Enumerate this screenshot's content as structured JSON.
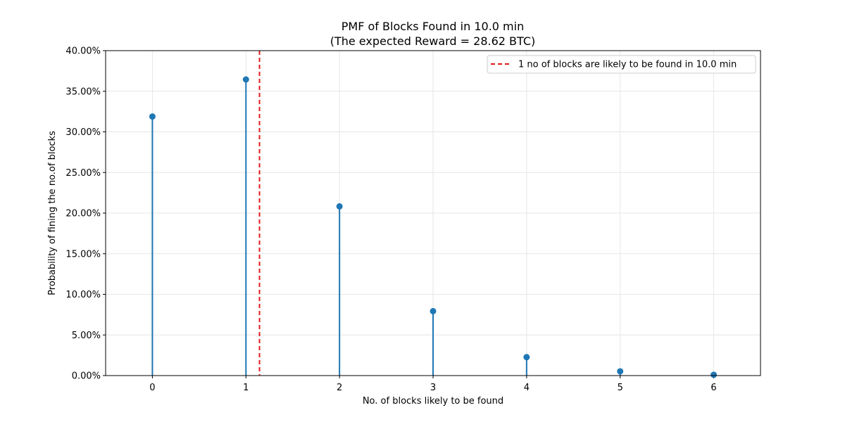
{
  "chart_data": {
    "type": "stem",
    "title_line1": "PMF of Blocks Found in 10.0 min",
    "title_line2": "(The expected Reward = 28.62 BTC)",
    "xlabel": "No. of blocks likely to be found",
    "ylabel": "Probability of fining the no.of blocks",
    "x": [
      0,
      1,
      2,
      3,
      4,
      5,
      6
    ],
    "y": [
      0.3189,
      0.3645,
      0.2083,
      0.0793,
      0.0227,
      0.0052,
      0.001
    ],
    "xlim": [
      -0.5,
      6.5
    ],
    "ylim": [
      0,
      0.4
    ],
    "y_ticks": [
      0,
      0.05,
      0.1,
      0.15,
      0.2,
      0.25,
      0.3,
      0.35,
      0.4
    ],
    "y_tick_labels": [
      "0.00%",
      "5.00%",
      "10.00%",
      "15.00%",
      "20.00%",
      "25.00%",
      "30.00%",
      "35.00%",
      "40.00%"
    ],
    "x_tick_labels": [
      "0",
      "1",
      "2",
      "3",
      "4",
      "5",
      "6"
    ],
    "vline_x": 1.1448,
    "legend_label": "1 no of blocks are likely to be found in 10.0 min",
    "legend_position": "top-right",
    "grid": true,
    "colors": {
      "stem": "#1f77b4",
      "vline": "#e41a1c",
      "grid": "#e6e6e6"
    }
  }
}
